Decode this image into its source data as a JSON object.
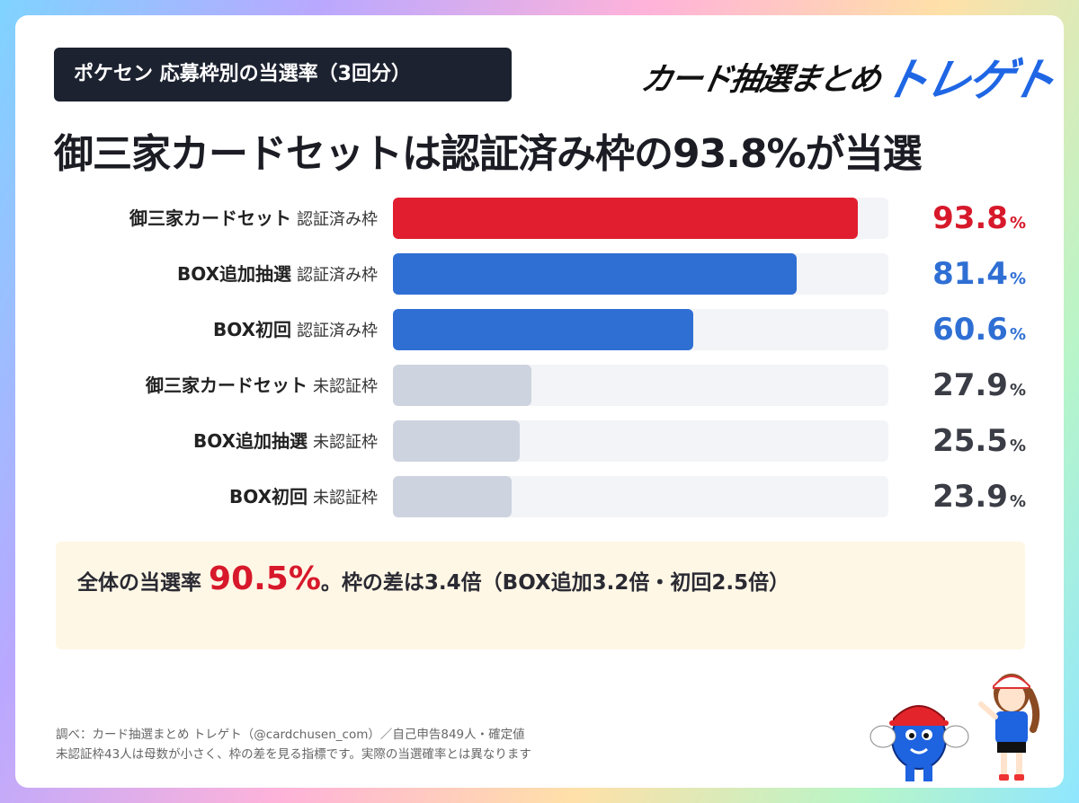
{
  "tag": "ポケセン 応募枠別の当選率（3回分）",
  "logo": {
    "part1": "カード抽選まとめ",
    "part2": "トレゲト"
  },
  "headline": "御三家カードセットは認証済み枠の93.8%が当選",
  "chart_data": {
    "type": "bar",
    "orientation": "horizontal",
    "xlim": [
      0,
      100
    ],
    "categories": [
      {
        "main": "御三家カードセット",
        "sub": "認証済み枠"
      },
      {
        "main": "BOX追加抽選",
        "sub": "認証済み枠"
      },
      {
        "main": "BOX初回",
        "sub": "認証済み枠"
      },
      {
        "main": "御三家カードセット",
        "sub": "未認証枠"
      },
      {
        "main": "BOX追加抽選",
        "sub": "未認証枠"
      },
      {
        "main": "BOX初回",
        "sub": "未認証枠"
      }
    ],
    "values": [
      93.8,
      81.4,
      60.6,
      27.9,
      25.5,
      23.9
    ],
    "value_labels": [
      "93.8",
      "81.4",
      "60.6",
      "27.9",
      "25.5",
      "23.9"
    ],
    "unit": "%",
    "colors": [
      "#e01e30",
      "#2f6fd4",
      "#2f6fd4",
      "#cdd3df",
      "#cdd3df",
      "#cdd3df"
    ],
    "label_colors": [
      "#d7192b",
      "#2f6fd4",
      "#2f6fd4",
      "#3a3d45",
      "#3a3d45",
      "#3a3d45"
    ]
  },
  "summary": {
    "pre": "全体の当選率 ",
    "big": "90.5%",
    "post": "。枠の差は3.4倍（BOX追加3.2倍・初回2.5倍）"
  },
  "footer": {
    "line1": "調べ：カード抽選まとめ トレゲト（@cardchusen_com）／自己申告849人・確定値",
    "line2": "未認証枠43人は母数が小さく、枠の差を見る指標です。実際の当選確率とは異なります"
  },
  "icons": [
    "mascot-blue-character",
    "mascot-girl-character"
  ]
}
